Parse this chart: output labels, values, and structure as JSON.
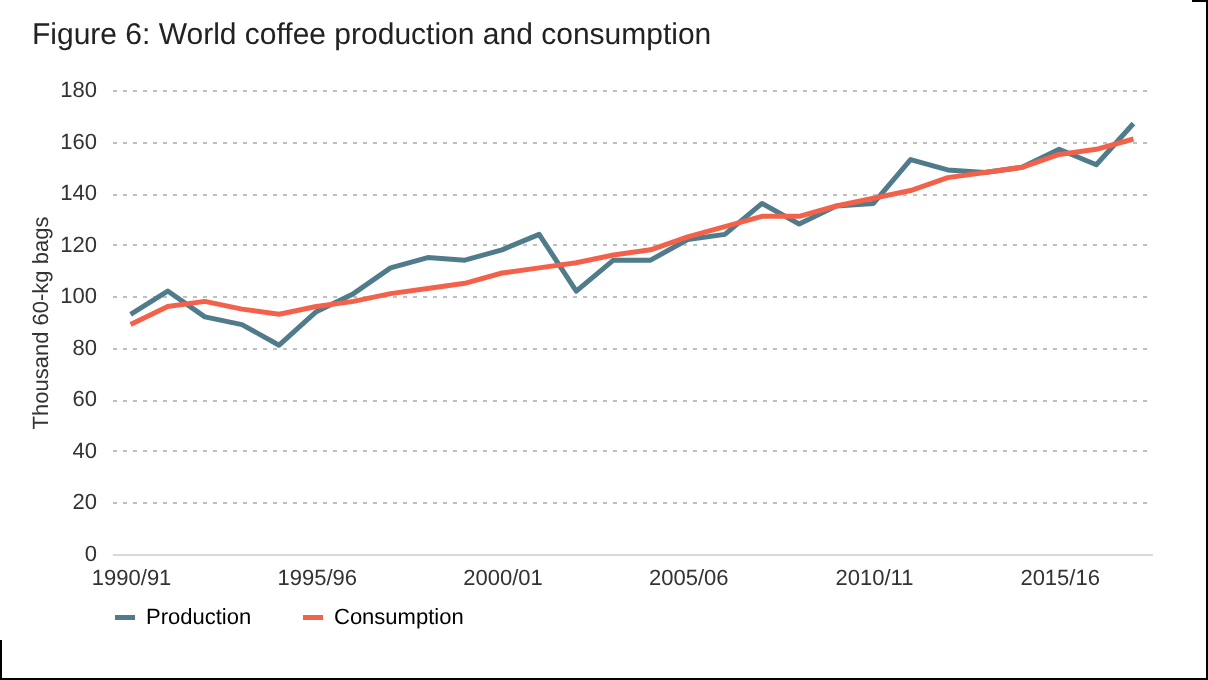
{
  "chart_data": {
    "type": "line",
    "title": "Figure 6: World coffee production and consumption",
    "ylabel": "Thousand 60-kg bags",
    "categories": [
      "1990/91",
      null,
      null,
      null,
      null,
      "1995/96",
      null,
      null,
      null,
      null,
      "2000/01",
      null,
      null,
      null,
      null,
      "2005/06",
      null,
      null,
      null,
      null,
      "2010/11",
      null,
      null,
      null,
      null,
      "2015/16",
      null,
      null
    ],
    "series": [
      {
        "name": "Production",
        "color": "#4f7b8b",
        "values": [
          93,
          102,
          92,
          89,
          81,
          94,
          101,
          111,
          115,
          114,
          118,
          124,
          102,
          114,
          114,
          122,
          124,
          136,
          128,
          135,
          136,
          153,
          149,
          148,
          150,
          157,
          151,
          167
        ]
      },
      {
        "name": "Consumption",
        "color": "#f4614a",
        "values": [
          89,
          96,
          98,
          95,
          93,
          96,
          98,
          101,
          103,
          105,
          109,
          111,
          113,
          116,
          118,
          123,
          127,
          131,
          131,
          135,
          138,
          141,
          146,
          148,
          150,
          155,
          157,
          161
        ]
      }
    ],
    "ylim": [
      0,
      180
    ],
    "yticks": [
      0,
      20,
      40,
      60,
      80,
      100,
      120,
      140,
      160,
      180
    ],
    "grid": "y",
    "legend": "bottom",
    "marker": "none",
    "line_style": "solid"
  }
}
